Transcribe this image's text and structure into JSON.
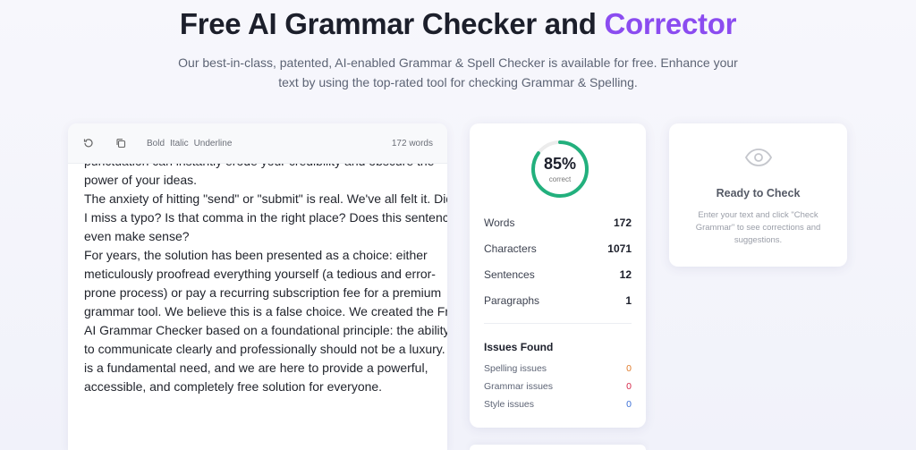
{
  "hero": {
    "title_main": "Free AI Grammar Checker and ",
    "title_accent": "Corrector",
    "subtitle": "Our best-in-class, patented, AI-enabled Grammar & Spell Checker is available for free. Enhance your text by using the top-rated tool for checking Grammar & Spelling.",
    "accent_color": "#8b4cf0"
  },
  "editor": {
    "toolbar": {
      "undo_icon": "undo-icon",
      "copy_icon": "copy-icon",
      "bold": "Bold",
      "italic": "Italic",
      "underline": "Underline",
      "word_count": "172 words"
    },
    "lines": [
      "punctuation can instantly erode your credibility and obscure the",
      "power of your ideas.",
      "The anxiety of hitting \"send\" or \"submit\" is real. We've all felt it. Did",
      "I miss a typo? Is that comma in the right place? Does this sentence",
      "even make sense?",
      "For years, the solution has been presented as a choice: either",
      "meticulously proofread everything yourself (a tedious and error-",
      "prone process) or pay a recurring subscription fee for a premium",
      "grammar tool. We believe this is a false choice. We created the Free",
      "AI Grammar Checker based on a foundational principle: the ability",
      "to communicate clearly and professionally should not be a luxury. It",
      "is a fundamental need, and we are here to provide a powerful,",
      "accessible, and completely free solution for everyone."
    ]
  },
  "stats": {
    "score": 85,
    "score_text": "85%",
    "score_label": "correct",
    "score_color": "#22b07d",
    "rows": [
      {
        "label": "Words",
        "value": "172"
      },
      {
        "label": "Characters",
        "value": "1071"
      },
      {
        "label": "Sentences",
        "value": "12"
      },
      {
        "label": "Paragraphs",
        "value": "1"
      }
    ],
    "issues_title": "Issues Found",
    "issues": [
      {
        "label": "Spelling issues",
        "value": "0",
        "color": "#e07b2a"
      },
      {
        "label": "Grammar issues",
        "value": "0",
        "color": "#d6284a"
      },
      {
        "label": "Style issues",
        "value": "0",
        "color": "#3b6fd6"
      }
    ]
  },
  "ready": {
    "icon": "eye-icon",
    "title": "Ready to Check",
    "text": "Enter your text and click \"Check Grammar\" to see corrections and suggestions."
  }
}
